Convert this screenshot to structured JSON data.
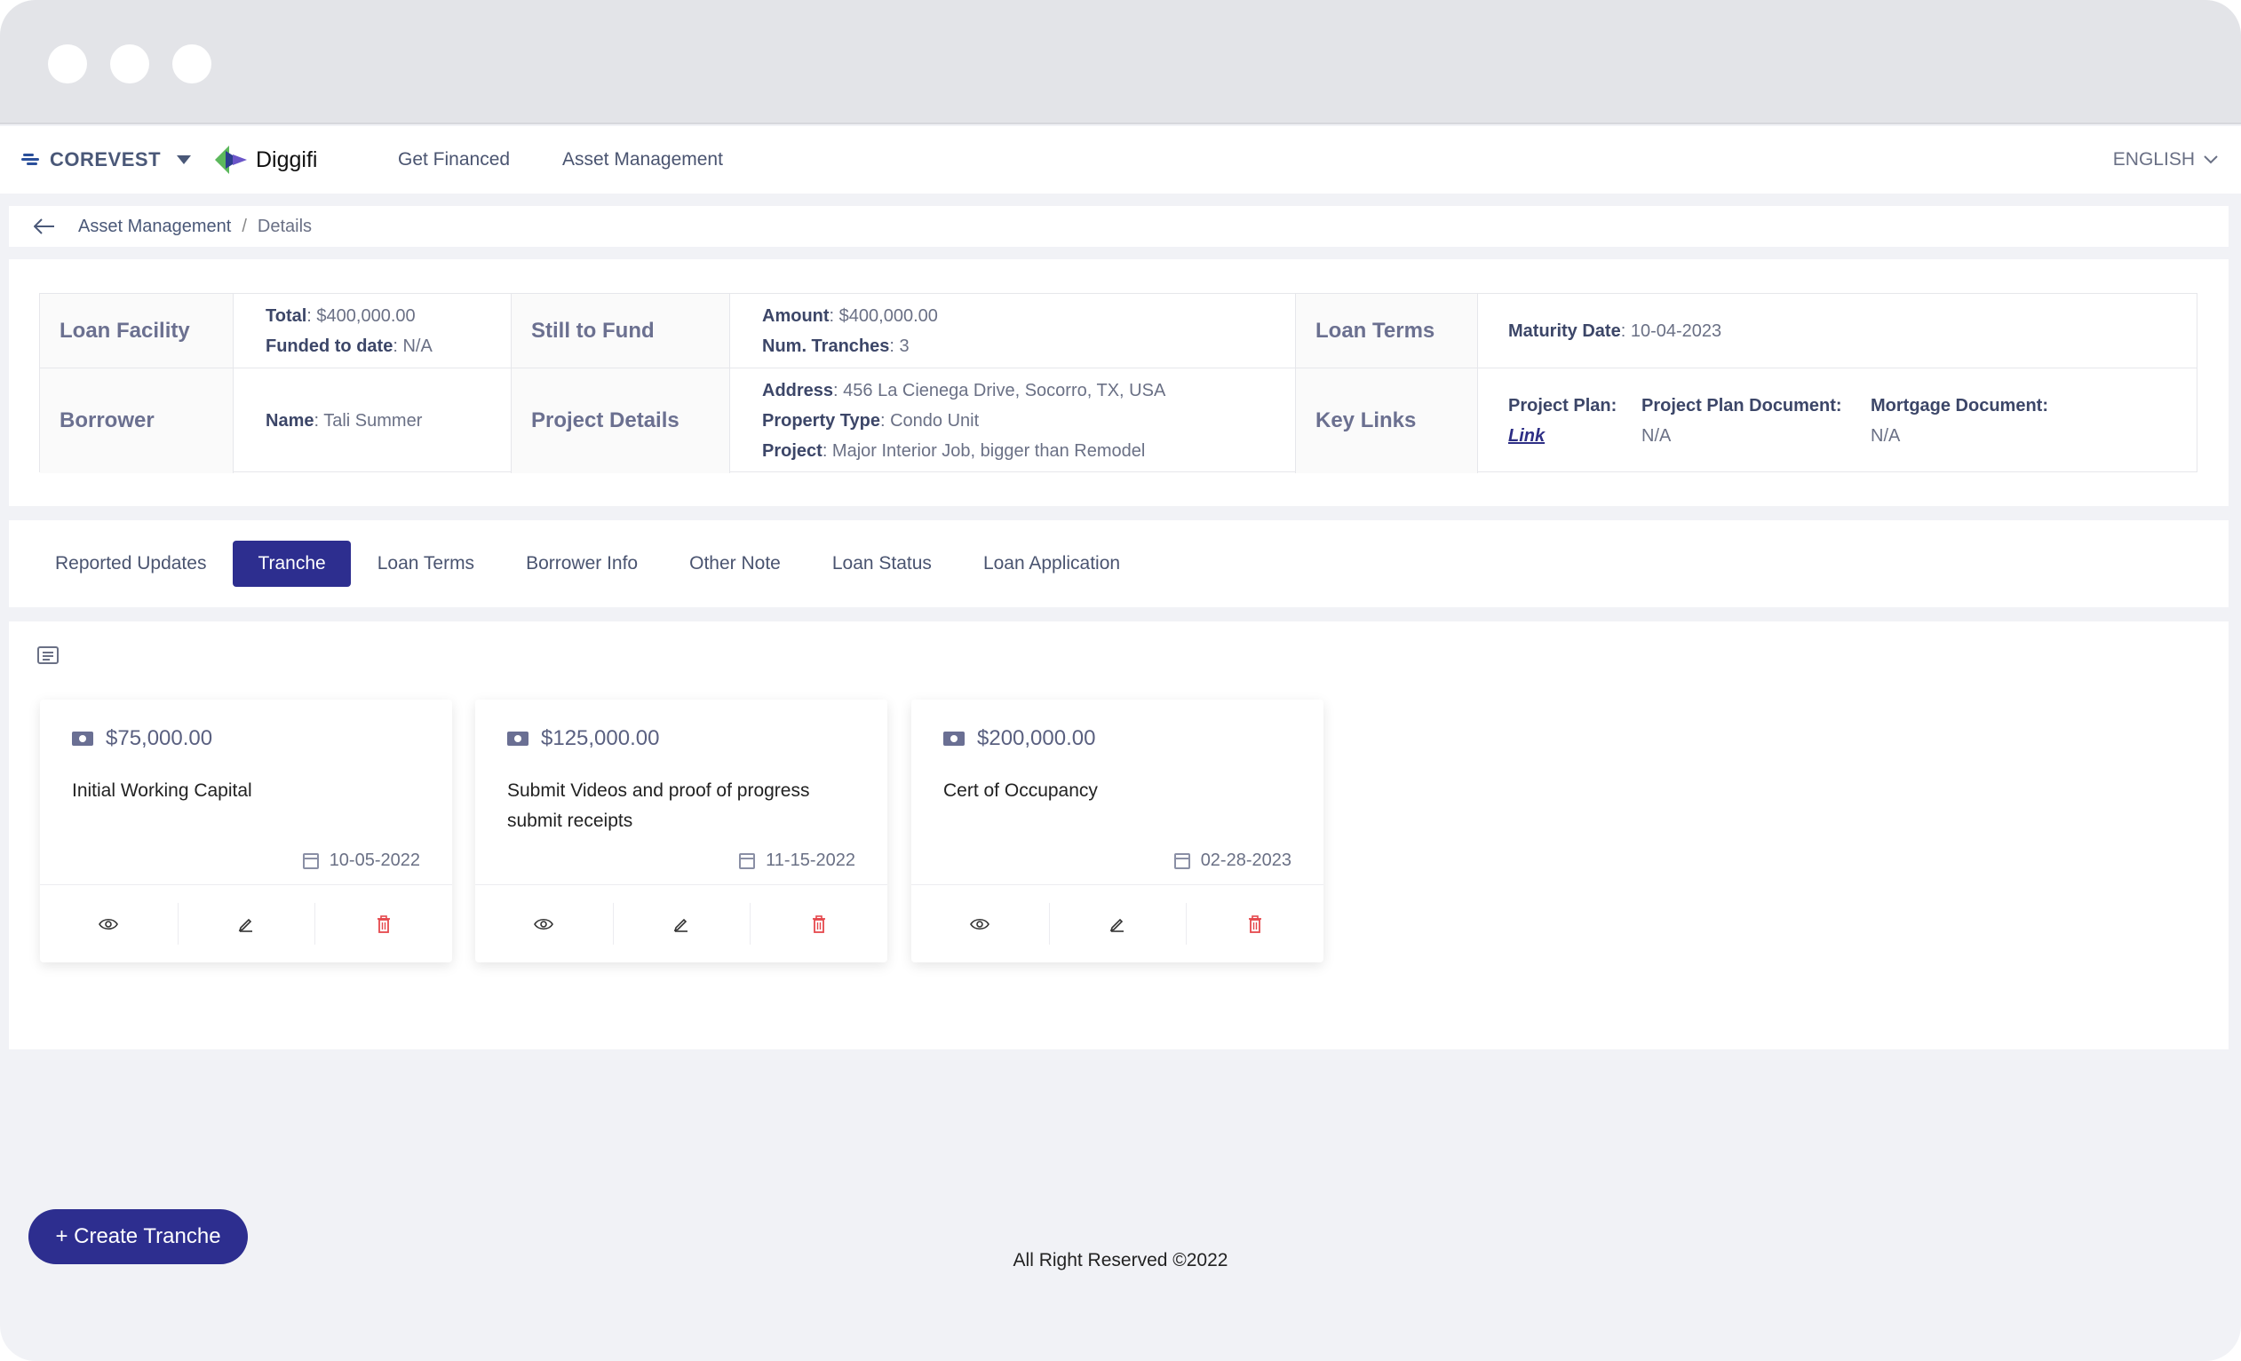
{
  "brand": {
    "corevest": "COREVEST",
    "diggifi": "Diggifi"
  },
  "nav": {
    "links": [
      "Get Financed",
      "Asset Management"
    ],
    "language": "ENGLISH"
  },
  "breadcrumb": {
    "parent": "Asset Management",
    "separator": "/",
    "current": "Details"
  },
  "info": {
    "loan_facility": {
      "label": "Loan Facility",
      "total_key": "Total",
      "total_val": ": $400,000.00",
      "funded_key": "Funded to date",
      "funded_val": ": N/A"
    },
    "still_to_fund": {
      "label": "Still to Fund",
      "amount_key": "Amount",
      "amount_val": ": $400,000.00",
      "tranches_key": "Num. Tranches",
      "tranches_val": ": 3"
    },
    "loan_terms": {
      "label": "Loan Terms",
      "maturity_key": "Maturity Date",
      "maturity_val": ": 10-04-2023"
    },
    "borrower": {
      "label": "Borrower",
      "name_key": "Name",
      "name_val": ": Tali Summer"
    },
    "project_details": {
      "label": "Project Details",
      "address_key": "Address",
      "address_val": ": 456 La Cienega Drive, Socorro, TX, USA",
      "type_key": "Property Type",
      "type_val": ": Condo Unit",
      "project_key": "Project",
      "project_val": ": Major Interior Job, bigger than Remodel"
    },
    "key_links": {
      "label": "Key Links",
      "plan_key": "Project Plan:",
      "plan_val": "Link",
      "plan_doc_key": "Project Plan Document:",
      "plan_doc_val": "N/A",
      "mortgage_key": "Mortgage Document:",
      "mortgage_val": "N/A"
    }
  },
  "tabs": [
    "Reported Updates",
    "Tranche",
    "Loan Terms",
    "Borrower Info",
    "Other Note",
    "Loan Status",
    "Loan Application"
  ],
  "active_tab": "Tranche",
  "tranches": [
    {
      "amount": "$75,000.00",
      "description": "Initial Working Capital",
      "date": "10-05-2022"
    },
    {
      "amount": "$125,000.00",
      "description": "Submit Videos and proof of progress submit receipts",
      "date": "11-15-2022"
    },
    {
      "amount": "$200,000.00",
      "description": "Cert of Occupancy",
      "date": "02-28-2023"
    }
  ],
  "create_button": "+ Create Tranche",
  "footer": "All Right Reserved ©2022",
  "colors": {
    "primary": "#2d2e8f",
    "delete": "#e5484d",
    "page_bg": "#f1f2f6"
  }
}
